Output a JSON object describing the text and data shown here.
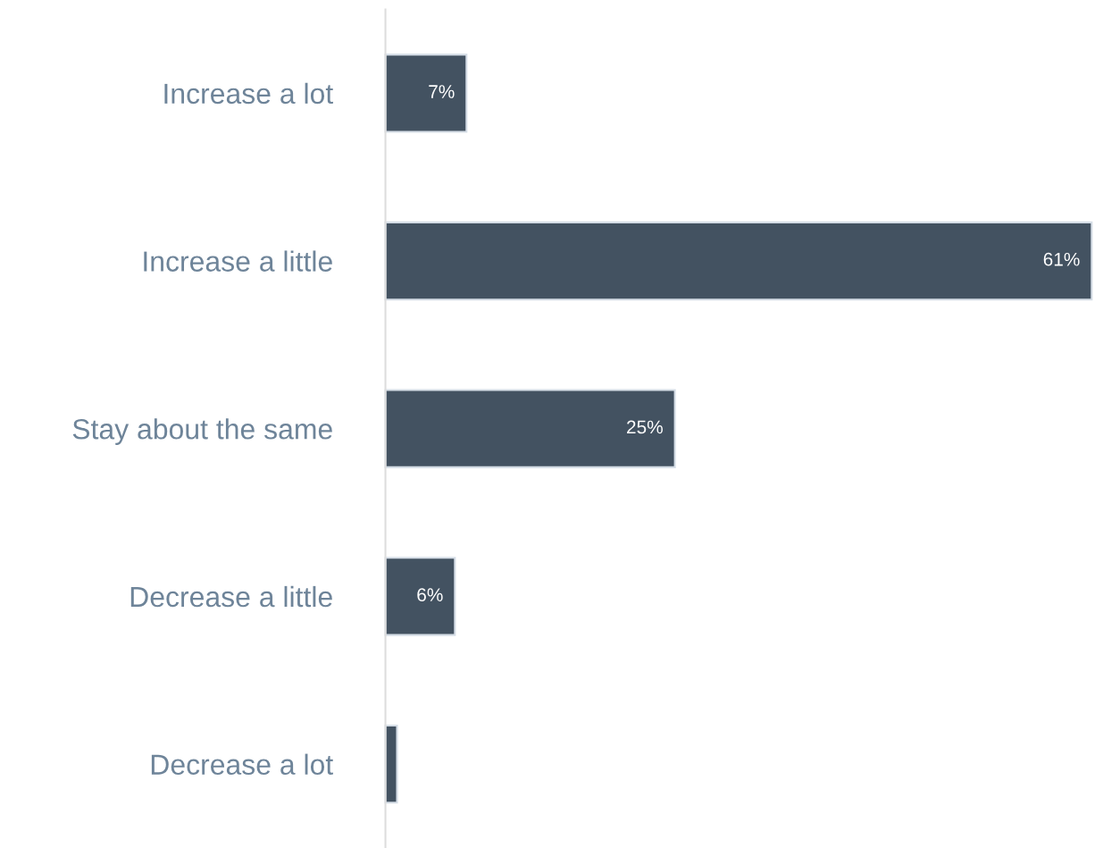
{
  "chart_data": {
    "type": "bar",
    "orientation": "horizontal",
    "categories": [
      "Increase a lot",
      "Increase a little",
      "Stay about the same",
      "Decrease a little",
      "Decrease a lot"
    ],
    "values": [
      7,
      61,
      25,
      6,
      1
    ],
    "value_labels": [
      "7%",
      "61%",
      "25%",
      "6%",
      null
    ],
    "color": "#435261",
    "xlim": [
      0,
      61
    ],
    "tick_labels": "y",
    "grid": false,
    "legend": false
  }
}
